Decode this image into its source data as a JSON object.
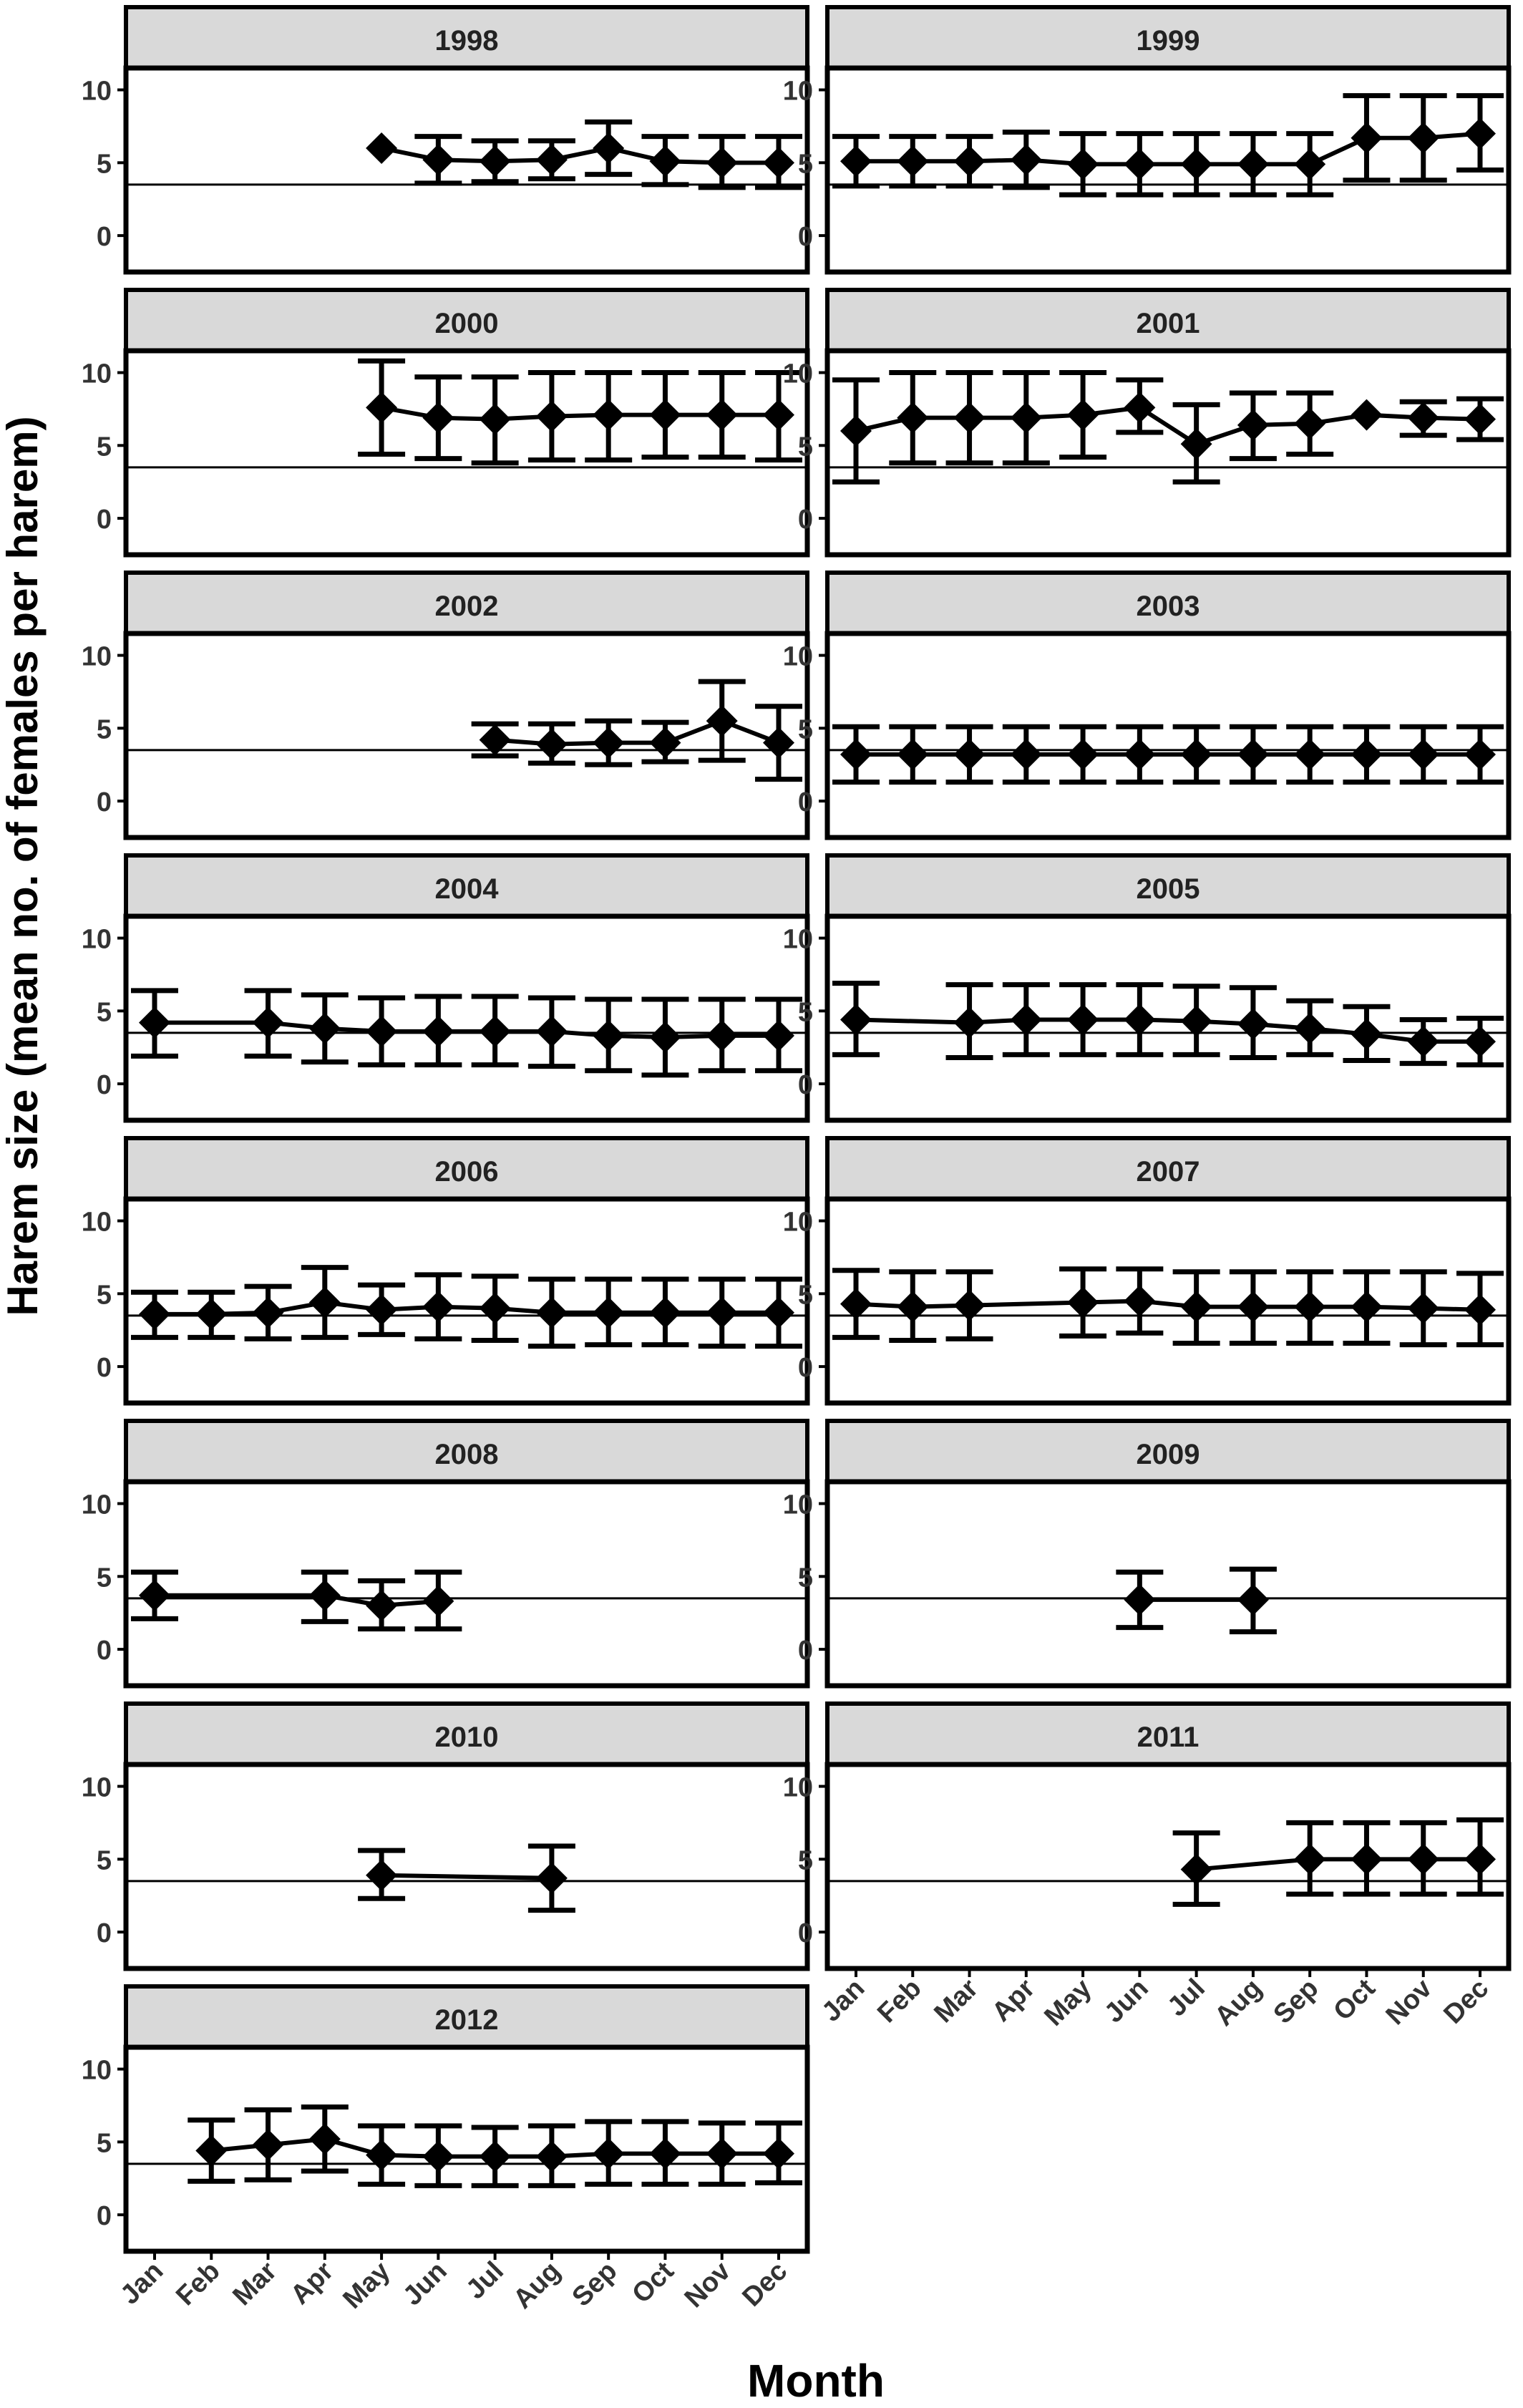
{
  "chart_data": {
    "type": "line",
    "facet_variable": "year",
    "xlabel": "Month",
    "ylabel": "Harem size (mean no. of females per harem)",
    "x_categories": [
      "Jan",
      "Feb",
      "Mar",
      "Apr",
      "May",
      "Jun",
      "Jul",
      "Aug",
      "Sep",
      "Oct",
      "Nov",
      "Dec"
    ],
    "y_ticks": [
      0,
      5,
      10
    ],
    "ylim": [
      -2.5,
      11.5
    ],
    "reference_line_y": 3.5,
    "grid": false,
    "series_style": {
      "marker": "diamond",
      "line_color": "#000000",
      "errorbar": true
    },
    "colors": {
      "strip_fill": "#d9d9d9",
      "ink": "#000000",
      "background": "#ffffff"
    },
    "panels": [
      {
        "title": "1998",
        "points": [
          {
            "month": "May",
            "mean": 6.0,
            "low": 6.0,
            "high": 6.0
          },
          {
            "month": "Jun",
            "mean": 5.2,
            "low": 3.6,
            "high": 6.8
          },
          {
            "month": "Jul",
            "mean": 5.1,
            "low": 3.7,
            "high": 6.5
          },
          {
            "month": "Aug",
            "mean": 5.2,
            "low": 3.9,
            "high": 6.5
          },
          {
            "month": "Sep",
            "mean": 6.0,
            "low": 4.2,
            "high": 7.8
          },
          {
            "month": "Oct",
            "mean": 5.1,
            "low": 3.5,
            "high": 6.8
          },
          {
            "month": "Nov",
            "mean": 5.0,
            "low": 3.3,
            "high": 6.8
          },
          {
            "month": "Dec",
            "mean": 5.0,
            "low": 3.3,
            "high": 6.8
          }
        ]
      },
      {
        "title": "1999",
        "points": [
          {
            "month": "Jan",
            "mean": 5.1,
            "low": 3.4,
            "high": 6.8
          },
          {
            "month": "Feb",
            "mean": 5.1,
            "low": 3.4,
            "high": 6.8
          },
          {
            "month": "Mar",
            "mean": 5.1,
            "low": 3.4,
            "high": 6.8
          },
          {
            "month": "Apr",
            "mean": 5.2,
            "low": 3.3,
            "high": 7.1
          },
          {
            "month": "May",
            "mean": 4.9,
            "low": 2.8,
            "high": 7.0
          },
          {
            "month": "Jun",
            "mean": 4.9,
            "low": 2.8,
            "high": 7.0
          },
          {
            "month": "Jul",
            "mean": 4.9,
            "low": 2.8,
            "high": 7.0
          },
          {
            "month": "Aug",
            "mean": 4.9,
            "low": 2.8,
            "high": 7.0
          },
          {
            "month": "Sep",
            "mean": 4.9,
            "low": 2.8,
            "high": 7.0
          },
          {
            "month": "Oct",
            "mean": 6.7,
            "low": 3.8,
            "high": 9.6
          },
          {
            "month": "Nov",
            "mean": 6.7,
            "low": 3.8,
            "high": 9.6
          },
          {
            "month": "Dec",
            "mean": 7.0,
            "low": 4.5,
            "high": 9.6
          }
        ]
      },
      {
        "title": "2000",
        "points": [
          {
            "month": "May",
            "mean": 7.6,
            "low": 4.4,
            "high": 10.8
          },
          {
            "month": "Jun",
            "mean": 6.9,
            "low": 4.1,
            "high": 9.7
          },
          {
            "month": "Jul",
            "mean": 6.8,
            "low": 3.8,
            "high": 9.7
          },
          {
            "month": "Aug",
            "mean": 7.0,
            "low": 4.0,
            "high": 10.0
          },
          {
            "month": "Sep",
            "mean": 7.1,
            "low": 4.0,
            "high": 10.0
          },
          {
            "month": "Oct",
            "mean": 7.1,
            "low": 4.2,
            "high": 10.0
          },
          {
            "month": "Nov",
            "mean": 7.1,
            "low": 4.2,
            "high": 10.0
          },
          {
            "month": "Dec",
            "mean": 7.1,
            "low": 4.0,
            "high": 10.0
          }
        ]
      },
      {
        "title": "2001",
        "points": [
          {
            "month": "Jan",
            "mean": 6.0,
            "low": 2.5,
            "high": 9.5
          },
          {
            "month": "Feb",
            "mean": 6.9,
            "low": 3.8,
            "high": 10.0
          },
          {
            "month": "Mar",
            "mean": 6.9,
            "low": 3.8,
            "high": 10.0
          },
          {
            "month": "Apr",
            "mean": 6.9,
            "low": 3.8,
            "high": 10.0
          },
          {
            "month": "May",
            "mean": 7.1,
            "low": 4.2,
            "high": 10.0
          },
          {
            "month": "Jun",
            "mean": 7.6,
            "low": 5.9,
            "high": 9.5
          },
          {
            "month": "Jul",
            "mean": 5.1,
            "low": 2.5,
            "high": 7.8
          },
          {
            "month": "Aug",
            "mean": 6.4,
            "low": 4.1,
            "high": 8.6
          },
          {
            "month": "Sep",
            "mean": 6.5,
            "low": 4.4,
            "high": 8.6
          },
          {
            "month": "Oct",
            "mean": 7.1,
            "low": 7.1,
            "high": 7.1
          },
          {
            "month": "Nov",
            "mean": 6.9,
            "low": 5.7,
            "high": 8.0
          },
          {
            "month": "Dec",
            "mean": 6.8,
            "low": 5.4,
            "high": 8.2
          }
        ]
      },
      {
        "title": "2002",
        "points": [
          {
            "month": "Jul",
            "mean": 4.2,
            "low": 3.1,
            "high": 5.3
          },
          {
            "month": "Aug",
            "mean": 3.9,
            "low": 2.6,
            "high": 5.3
          },
          {
            "month": "Sep",
            "mean": 4.0,
            "low": 2.5,
            "high": 5.5
          },
          {
            "month": "Oct",
            "mean": 4.0,
            "low": 2.7,
            "high": 5.4
          },
          {
            "month": "Nov",
            "mean": 5.5,
            "low": 2.8,
            "high": 8.2
          },
          {
            "month": "Dec",
            "mean": 4.0,
            "low": 1.5,
            "high": 6.5
          }
        ]
      },
      {
        "title": "2003",
        "points": [
          {
            "month": "Jan",
            "mean": 3.2,
            "low": 1.3,
            "high": 5.1
          },
          {
            "month": "Feb",
            "mean": 3.2,
            "low": 1.3,
            "high": 5.1
          },
          {
            "month": "Mar",
            "mean": 3.2,
            "low": 1.3,
            "high": 5.1
          },
          {
            "month": "Apr",
            "mean": 3.2,
            "low": 1.3,
            "high": 5.1
          },
          {
            "month": "May",
            "mean": 3.2,
            "low": 1.3,
            "high": 5.1
          },
          {
            "month": "Jun",
            "mean": 3.2,
            "low": 1.3,
            "high": 5.1
          },
          {
            "month": "Jul",
            "mean": 3.2,
            "low": 1.3,
            "high": 5.1
          },
          {
            "month": "Aug",
            "mean": 3.2,
            "low": 1.3,
            "high": 5.1
          },
          {
            "month": "Sep",
            "mean": 3.2,
            "low": 1.3,
            "high": 5.1
          },
          {
            "month": "Oct",
            "mean": 3.2,
            "low": 1.3,
            "high": 5.1
          },
          {
            "month": "Nov",
            "mean": 3.2,
            "low": 1.3,
            "high": 5.1
          },
          {
            "month": "Dec",
            "mean": 3.2,
            "low": 1.3,
            "high": 5.1
          }
        ]
      },
      {
        "title": "2004",
        "points": [
          {
            "month": "Jan",
            "mean": 4.2,
            "low": 1.9,
            "high": 6.4
          },
          {
            "month": "Mar",
            "mean": 4.2,
            "low": 1.9,
            "high": 6.4
          },
          {
            "month": "Apr",
            "mean": 3.8,
            "low": 1.5,
            "high": 6.1
          },
          {
            "month": "May",
            "mean": 3.6,
            "low": 1.3,
            "high": 5.9
          },
          {
            "month": "Jun",
            "mean": 3.6,
            "low": 1.3,
            "high": 6.0
          },
          {
            "month": "Jul",
            "mean": 3.6,
            "low": 1.3,
            "high": 6.0
          },
          {
            "month": "Aug",
            "mean": 3.6,
            "low": 1.2,
            "high": 5.9
          },
          {
            "month": "Sep",
            "mean": 3.3,
            "low": 0.9,
            "high": 5.8
          },
          {
            "month": "Oct",
            "mean": 3.2,
            "low": 0.6,
            "high": 5.8
          },
          {
            "month": "Nov",
            "mean": 3.3,
            "low": 0.9,
            "high": 5.8
          },
          {
            "month": "Dec",
            "mean": 3.3,
            "low": 0.9,
            "high": 5.8
          }
        ]
      },
      {
        "title": "2005",
        "points": [
          {
            "month": "Jan",
            "mean": 4.4,
            "low": 2.0,
            "high": 6.9
          },
          {
            "month": "Mar",
            "mean": 4.2,
            "low": 1.8,
            "high": 6.8
          },
          {
            "month": "Apr",
            "mean": 4.4,
            "low": 2.0,
            "high": 6.8
          },
          {
            "month": "May",
            "mean": 4.4,
            "low": 2.0,
            "high": 6.8
          },
          {
            "month": "Jun",
            "mean": 4.4,
            "low": 2.0,
            "high": 6.8
          },
          {
            "month": "Jul",
            "mean": 4.3,
            "low": 2.0,
            "high": 6.7
          },
          {
            "month": "Aug",
            "mean": 4.1,
            "low": 1.8,
            "high": 6.6
          },
          {
            "month": "Sep",
            "mean": 3.8,
            "low": 2.0,
            "high": 5.7
          },
          {
            "month": "Oct",
            "mean": 3.4,
            "low": 1.6,
            "high": 5.3
          },
          {
            "month": "Nov",
            "mean": 2.9,
            "low": 1.4,
            "high": 4.4
          },
          {
            "month": "Dec",
            "mean": 2.9,
            "low": 1.3,
            "high": 4.5
          }
        ]
      },
      {
        "title": "2006",
        "points": [
          {
            "month": "Jan",
            "mean": 3.6,
            "low": 2.0,
            "high": 5.1
          },
          {
            "month": "Feb",
            "mean": 3.6,
            "low": 2.0,
            "high": 5.1
          },
          {
            "month": "Mar",
            "mean": 3.7,
            "low": 1.9,
            "high": 5.5
          },
          {
            "month": "Apr",
            "mean": 4.4,
            "low": 2.0,
            "high": 6.8
          },
          {
            "month": "May",
            "mean": 3.9,
            "low": 2.2,
            "high": 5.6
          },
          {
            "month": "Jun",
            "mean": 4.1,
            "low": 1.9,
            "high": 6.3
          },
          {
            "month": "Jul",
            "mean": 4.0,
            "low": 1.8,
            "high": 6.2
          },
          {
            "month": "Aug",
            "mean": 3.7,
            "low": 1.4,
            "high": 6.0
          },
          {
            "month": "Sep",
            "mean": 3.7,
            "low": 1.5,
            "high": 6.0
          },
          {
            "month": "Oct",
            "mean": 3.7,
            "low": 1.5,
            "high": 6.0
          },
          {
            "month": "Nov",
            "mean": 3.7,
            "low": 1.4,
            "high": 6.0
          },
          {
            "month": "Dec",
            "mean": 3.7,
            "low": 1.4,
            "high": 6.0
          }
        ]
      },
      {
        "title": "2007",
        "points": [
          {
            "month": "Jan",
            "mean": 4.3,
            "low": 2.0,
            "high": 6.6
          },
          {
            "month": "Feb",
            "mean": 4.1,
            "low": 1.8,
            "high": 6.5
          },
          {
            "month": "Mar",
            "mean": 4.2,
            "low": 1.9,
            "high": 6.5
          },
          {
            "month": "May",
            "mean": 4.4,
            "low": 2.1,
            "high": 6.7
          },
          {
            "month": "Jun",
            "mean": 4.5,
            "low": 2.3,
            "high": 6.7
          },
          {
            "month": "Jul",
            "mean": 4.1,
            "low": 1.6,
            "high": 6.5
          },
          {
            "month": "Aug",
            "mean": 4.1,
            "low": 1.6,
            "high": 6.5
          },
          {
            "month": "Sep",
            "mean": 4.1,
            "low": 1.6,
            "high": 6.5
          },
          {
            "month": "Oct",
            "mean": 4.1,
            "low": 1.6,
            "high": 6.5
          },
          {
            "month": "Nov",
            "mean": 4.0,
            "low": 1.5,
            "high": 6.5
          },
          {
            "month": "Dec",
            "mean": 3.9,
            "low": 1.5,
            "high": 6.4
          }
        ]
      },
      {
        "title": "2008",
        "points": [
          {
            "month": "Jan",
            "mean": 3.7,
            "low": 2.1,
            "high": 5.3
          },
          {
            "month": "Apr",
            "mean": 3.7,
            "low": 1.9,
            "high": 5.3
          },
          {
            "month": "May",
            "mean": 3.0,
            "low": 1.4,
            "high": 4.7
          },
          {
            "month": "Jun",
            "mean": 3.3,
            "low": 1.4,
            "high": 5.3
          }
        ]
      },
      {
        "title": "2009",
        "points": [
          {
            "month": "Jun",
            "mean": 3.4,
            "low": 1.5,
            "high": 5.3
          },
          {
            "month": "Aug",
            "mean": 3.4,
            "low": 1.2,
            "high": 5.5
          }
        ]
      },
      {
        "title": "2010",
        "points": [
          {
            "month": "May",
            "mean": 3.9,
            "low": 2.3,
            "high": 5.6
          },
          {
            "month": "Aug",
            "mean": 3.7,
            "low": 1.5,
            "high": 5.9
          }
        ]
      },
      {
        "title": "2011",
        "points": [
          {
            "month": "Jul",
            "mean": 4.3,
            "low": 1.9,
            "high": 6.8
          },
          {
            "month": "Sep",
            "mean": 5.0,
            "low": 2.6,
            "high": 7.5
          },
          {
            "month": "Oct",
            "mean": 5.0,
            "low": 2.6,
            "high": 7.5
          },
          {
            "month": "Nov",
            "mean": 5.0,
            "low": 2.6,
            "high": 7.5
          },
          {
            "month": "Dec",
            "mean": 5.0,
            "low": 2.6,
            "high": 7.7
          }
        ]
      },
      {
        "title": "2012",
        "points": [
          {
            "month": "Feb",
            "mean": 4.4,
            "low": 2.3,
            "high": 6.5
          },
          {
            "month": "Mar",
            "mean": 4.8,
            "low": 2.4,
            "high": 7.2
          },
          {
            "month": "Apr",
            "mean": 5.2,
            "low": 3.0,
            "high": 7.4
          },
          {
            "month": "May",
            "mean": 4.1,
            "low": 2.1,
            "high": 6.1
          },
          {
            "month": "Jun",
            "mean": 4.0,
            "low": 2.0,
            "high": 6.1
          },
          {
            "month": "Jul",
            "mean": 4.0,
            "low": 2.0,
            "high": 6.0
          },
          {
            "month": "Aug",
            "mean": 4.0,
            "low": 2.0,
            "high": 6.1
          },
          {
            "month": "Sep",
            "mean": 4.2,
            "low": 2.1,
            "high": 6.4
          },
          {
            "month": "Oct",
            "mean": 4.2,
            "low": 2.1,
            "high": 6.4
          },
          {
            "month": "Nov",
            "mean": 4.2,
            "low": 2.1,
            "high": 6.3
          },
          {
            "month": "Dec",
            "mean": 4.2,
            "low": 2.2,
            "high": 6.3
          }
        ]
      }
    ]
  }
}
